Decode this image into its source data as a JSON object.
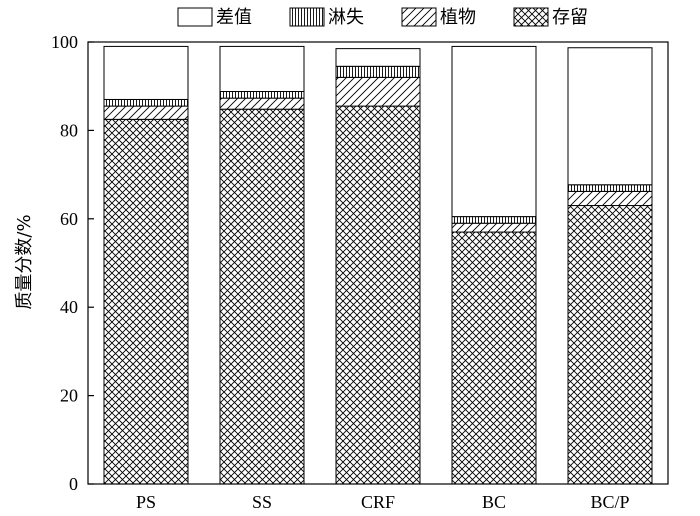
{
  "chart_data": {
    "type": "bar",
    "stacked": true,
    "title": "",
    "xlabel": "",
    "ylabel": "质量分数/%",
    "ylim": [
      0,
      100
    ],
    "yticks": [
      "0",
      "20",
      "40",
      "60",
      "80",
      "100"
    ],
    "categories": [
      "PS",
      "SS",
      "CRF",
      "BC",
      "BC/P"
    ],
    "legend_position": "top",
    "grid": false,
    "series": [
      {
        "name": "存留",
        "pattern": "crosshatch",
        "values": [
          82.5,
          84.8,
          85.5,
          57.0,
          63.0
        ]
      },
      {
        "name": "植物",
        "pattern": "diagonal",
        "values": [
          3.0,
          2.5,
          6.5,
          2.0,
          3.2
        ]
      },
      {
        "name": "淋失",
        "pattern": "vertical",
        "values": [
          1.5,
          1.5,
          2.5,
          1.5,
          1.5
        ]
      },
      {
        "name": "差值",
        "pattern": "none",
        "values": [
          12.0,
          10.2,
          4.0,
          38.5,
          31.0
        ]
      }
    ],
    "legend_order": [
      "差值",
      "淋失",
      "植物",
      "存留"
    ]
  }
}
